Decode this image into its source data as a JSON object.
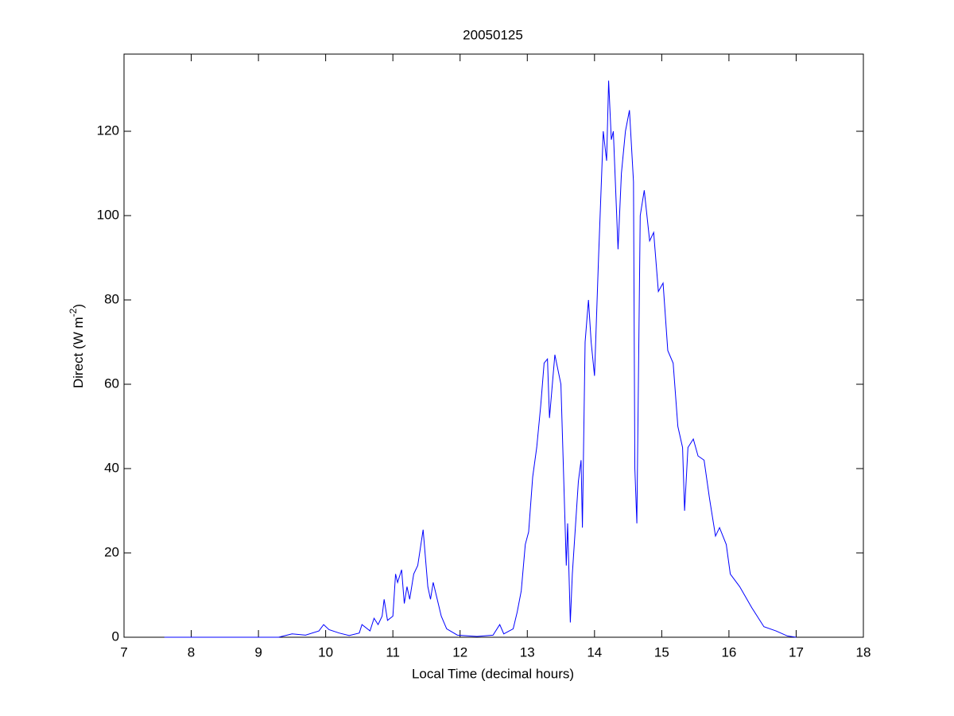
{
  "chart_data": {
    "type": "line",
    "title": "20050125",
    "xlabel": "Local Time (decimal hours)",
    "ylabel": [
      "Direct (W m",
      "-2",
      ")"
    ],
    "xlim": [
      7,
      18
    ],
    "xticks": [
      7,
      8,
      9,
      10,
      11,
      12,
      13,
      14,
      15,
      16,
      17,
      18
    ],
    "ylim": [
      0,
      138.3
    ],
    "yticks": [
      0,
      20,
      40,
      60,
      80,
      100,
      120
    ],
    "grid": false,
    "series": [
      {
        "color": "#0000ff",
        "x": [
          7.6,
          9.3,
          9.5,
          9.7,
          9.9,
          9.97,
          10.05,
          10.2,
          10.35,
          10.5,
          10.54,
          10.66,
          10.72,
          10.78,
          10.84,
          10.87,
          10.92,
          11.0,
          11.04,
          11.07,
          11.13,
          11.17,
          11.21,
          11.25,
          11.31,
          11.37,
          11.45,
          11.52,
          11.56,
          11.6,
          11.66,
          11.72,
          11.8,
          11.96,
          12.25,
          12.49,
          12.59,
          12.65,
          12.79,
          12.85,
          12.91,
          12.97,
          13.02,
          13.08,
          13.14,
          13.2,
          13.25,
          13.3,
          13.33,
          13.41,
          13.5,
          13.58,
          13.6,
          13.64,
          13.67,
          13.76,
          13.8,
          13.82,
          13.86,
          13.91,
          13.95,
          14.0,
          14.06,
          14.13,
          14.18,
          14.21,
          14.25,
          14.28,
          14.33,
          14.35,
          14.4,
          14.46,
          14.52,
          14.58,
          14.6,
          14.63,
          14.68,
          14.74,
          14.82,
          14.88,
          14.95,
          15.02,
          15.09,
          15.17,
          15.24,
          15.31,
          15.34,
          15.39,
          15.47,
          15.54,
          15.63,
          15.71,
          15.8,
          15.86,
          15.96,
          16.02,
          16.16,
          16.34,
          16.52,
          16.7,
          16.87,
          17.0
        ],
        "values": [
          0,
          0,
          0.8,
          0.5,
          1.5,
          3,
          1.8,
          1,
          0.4,
          1,
          3,
          1.5,
          4.5,
          3,
          5,
          9,
          4,
          5,
          15,
          13,
          16,
          8,
          12,
          9,
          15,
          17,
          25.5,
          12,
          9,
          13,
          9,
          5,
          2,
          0.5,
          0.2,
          0.5,
          3,
          0.8,
          2,
          6,
          11,
          22,
          25,
          38,
          45,
          55,
          65,
          66,
          52,
          67,
          60,
          17,
          27,
          3.5,
          15,
          37,
          42,
          26,
          70,
          80,
          70,
          62,
          90,
          120,
          113,
          132,
          118,
          120,
          100,
          92,
          110,
          120,
          125,
          108,
          40,
          27,
          100,
          106,
          94,
          96,
          82,
          84,
          68,
          65,
          50,
          45,
          30,
          45,
          47,
          43,
          42,
          33,
          24,
          26,
          22,
          15,
          12,
          7,
          2.5,
          1.5,
          0.3,
          0
        ]
      }
    ]
  }
}
